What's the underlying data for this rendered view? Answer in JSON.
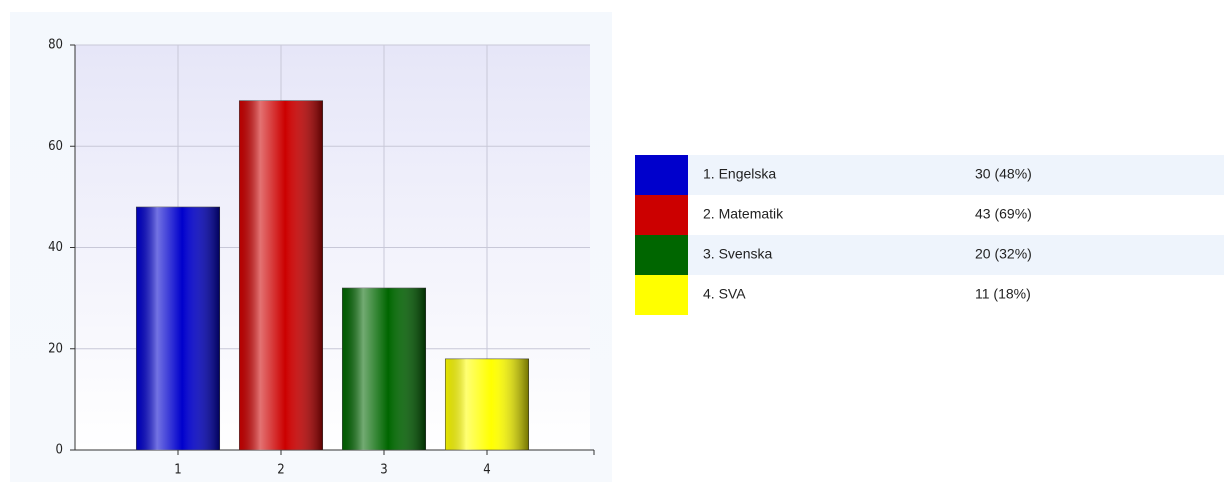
{
  "chart_data": {
    "type": "bar",
    "categories": [
      "1",
      "2",
      "3",
      "4"
    ],
    "values": [
      48,
      69,
      32,
      18
    ],
    "value_labels": [
      "30 (48%)",
      "43 (69%)",
      "20 (32%)",
      "11 (18%)"
    ],
    "labels": [
      "1. Engelska",
      "2. Matematik",
      "3. Svenska",
      "4. SVA"
    ],
    "colors": [
      "#0000cc",
      "#cc0000",
      "#006600",
      "#ffff00"
    ],
    "ylim": [
      0,
      80
    ],
    "yticks": [
      0,
      20,
      40,
      60,
      80
    ],
    "grid": true
  }
}
